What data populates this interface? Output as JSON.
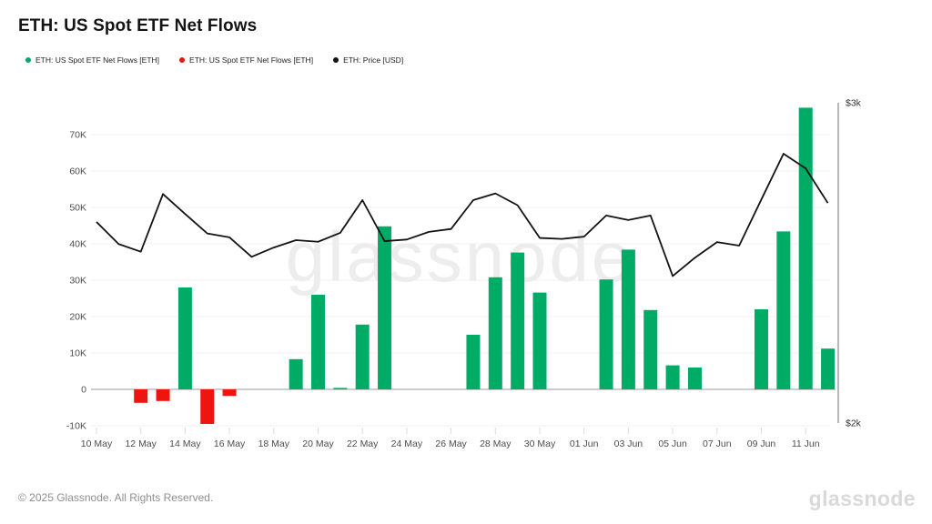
{
  "header": {
    "title": "ETH: US Spot ETF Net Flows"
  },
  "legend": [
    {
      "marker": "dot-icon",
      "color": "#00ab66",
      "label": "ETH: US Spot ETF Net Flows [ETH]"
    },
    {
      "marker": "dot-icon",
      "color": "#ee1410",
      "label": "ETH: US Spot ETF Net Flows [ETH]"
    },
    {
      "marker": "dot-icon",
      "color": "#131313",
      "label": "ETH: Price [USD]"
    }
  ],
  "watermark": "glassnode",
  "footer": {
    "copyright": "© 2025 Glassnode. All Rights Reserved.",
    "logo": "glassnode"
  },
  "chart_data": {
    "type": "bar+line",
    "title": "ETH: US Spot ETF Net Flows",
    "x": [
      "10 May",
      "11 May",
      "12 May",
      "13 May",
      "14 May",
      "15 May",
      "16 May",
      "17 May",
      "18 May",
      "19 May",
      "20 May",
      "21 May",
      "22 May",
      "23 May",
      "24 May",
      "25 May",
      "26 May",
      "27 May",
      "28 May",
      "29 May",
      "30 May",
      "31 May",
      "01 Jun",
      "02 Jun",
      "03 Jun",
      "04 Jun",
      "05 Jun",
      "06 Jun",
      "07 Jun",
      "08 Jun",
      "09 Jun",
      "10 Jun",
      "11 Jun",
      "12 Jun"
    ],
    "x_tick_every": 2,
    "series": [
      {
        "name": "ETH: US Spot ETF Net Flows [ETH]",
        "type": "bar",
        "unit": "ETH",
        "positive_color": "#00ab66",
        "negative_color": "#ee1410",
        "values": [
          null,
          null,
          -3700,
          -3200,
          28000,
          -9500,
          -1800,
          null,
          null,
          8300,
          26000,
          400,
          17800,
          44800,
          null,
          null,
          null,
          15000,
          30800,
          37600,
          26600,
          null,
          null,
          30200,
          38400,
          21800,
          6600,
          6000,
          null,
          null,
          22000,
          43400,
          77400,
          11200
        ]
      },
      {
        "name": "ETH: Price [USD]",
        "type": "line",
        "unit": "USD",
        "color": "#131313",
        "values": [
          2628,
          2559,
          2535,
          2715,
          2653,
          2592,
          2580,
          2519,
          2548,
          2571,
          2566,
          2594,
          2696,
          2568,
          2573,
          2597,
          2606,
          2696,
          2717,
          2680,
          2578,
          2575,
          2582,
          2648,
          2634,
          2648,
          2459,
          2516,
          2565,
          2554,
          2698,
          2841,
          2795,
          2687
        ]
      }
    ],
    "left_axis": {
      "tick_labels": [
        "70K",
        "60K",
        "50K",
        "40K",
        "30K",
        "20K",
        "10K",
        "0",
        "-10K"
      ],
      "tick_values": [
        70000,
        60000,
        50000,
        40000,
        30000,
        20000,
        10000,
        0,
        -10000
      ],
      "range": [
        -12500,
        80000
      ],
      "grid": true
    },
    "right_axis": {
      "tick_labels": [
        "$3k",
        "$2k"
      ],
      "tick_values": [
        3000,
        2000
      ],
      "range": [
        2000,
        3000
      ]
    }
  }
}
